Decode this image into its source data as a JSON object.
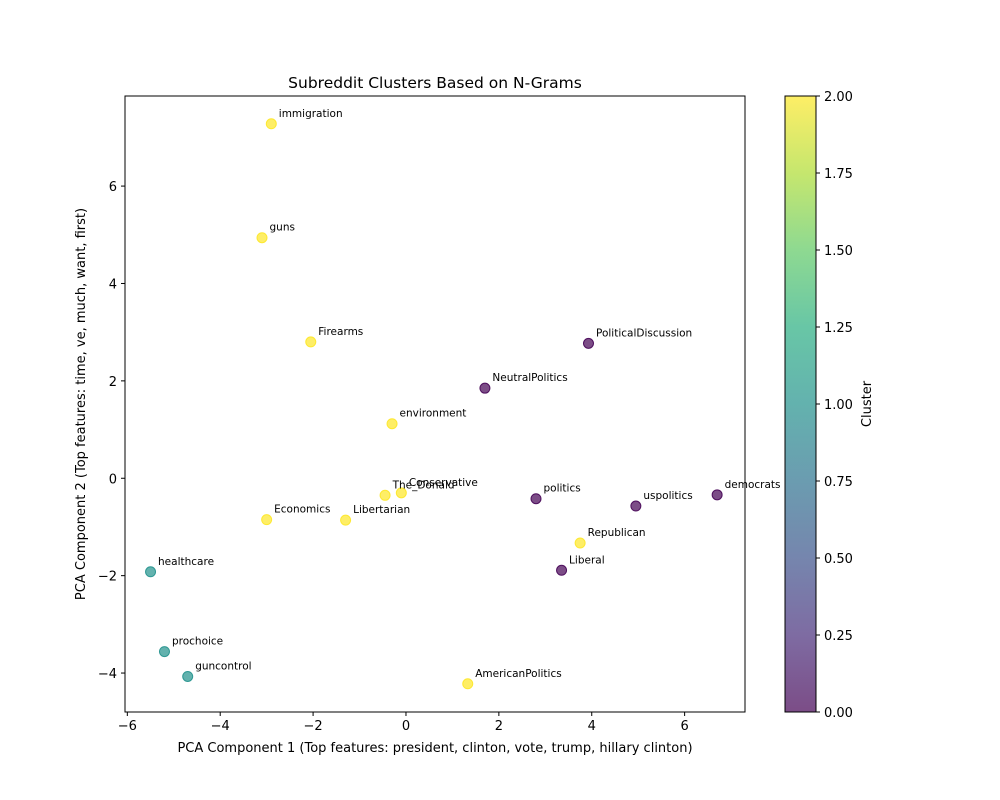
{
  "chart_data": {
    "type": "scatter",
    "title": "Subreddit Clusters Based on N-Grams",
    "xlabel": "PCA Component 1 (Top features: president, clinton, vote, trump, hillary clinton)",
    "ylabel": "PCA Component 2 (Top features: time, ve, much, want, first)",
    "xlim": [
      -6.05,
      7.3
    ],
    "ylim": [
      -4.8,
      7.85
    ],
    "xticks": [
      -6,
      -4,
      -2,
      0,
      2,
      4,
      6
    ],
    "yticks": [
      -4,
      -2,
      0,
      2,
      4,
      6
    ],
    "grid": false,
    "colorbar": {
      "label": "Cluster",
      "range": [
        0,
        2
      ],
      "ticks": [
        "0.00",
        "0.25",
        "0.50",
        "0.75",
        "1.00",
        "1.25",
        "1.50",
        "1.75",
        "2.00"
      ],
      "colormap": "viridis",
      "alpha": 0.7
    },
    "points": [
      {
        "label": "immigration",
        "x": -2.9,
        "y": 7.28,
        "cluster": 2
      },
      {
        "label": "guns",
        "x": -3.1,
        "y": 4.94,
        "cluster": 2
      },
      {
        "label": "Firearms",
        "x": -2.05,
        "y": 2.8,
        "cluster": 2
      },
      {
        "label": "PoliticalDiscussion",
        "x": 3.93,
        "y": 2.77,
        "cluster": 0
      },
      {
        "label": "NeutralPolitics",
        "x": 1.7,
        "y": 1.85,
        "cluster": 0
      },
      {
        "label": "environment",
        "x": -0.3,
        "y": 1.12,
        "cluster": 2
      },
      {
        "label": "Conservative",
        "x": -0.1,
        "y": -0.3,
        "cluster": 2
      },
      {
        "label": "The_Donald",
        "x": -0.45,
        "y": -0.35,
        "cluster": 2
      },
      {
        "label": "politics",
        "x": 2.8,
        "y": -0.42,
        "cluster": 0
      },
      {
        "label": "uspolitics",
        "x": 4.95,
        "y": -0.57,
        "cluster": 0
      },
      {
        "label": "democrats",
        "x": 6.7,
        "y": -0.34,
        "cluster": 0
      },
      {
        "label": "Economics",
        "x": -3.0,
        "y": -0.85,
        "cluster": 2
      },
      {
        "label": "Libertarian",
        "x": -1.3,
        "y": -0.86,
        "cluster": 2
      },
      {
        "label": "Republican",
        "x": 3.75,
        "y": -1.33,
        "cluster": 2
      },
      {
        "label": "Liberal",
        "x": 3.35,
        "y": -1.89,
        "cluster": 0
      },
      {
        "label": "healthcare",
        "x": -5.5,
        "y": -1.92,
        "cluster": 1
      },
      {
        "label": "prochoice",
        "x": -5.2,
        "y": -3.56,
        "cluster": 1
      },
      {
        "label": "guncontrol",
        "x": -4.7,
        "y": -4.07,
        "cluster": 1
      },
      {
        "label": "AmericanPolitics",
        "x": 1.33,
        "y": -4.22,
        "cluster": 2
      }
    ]
  }
}
